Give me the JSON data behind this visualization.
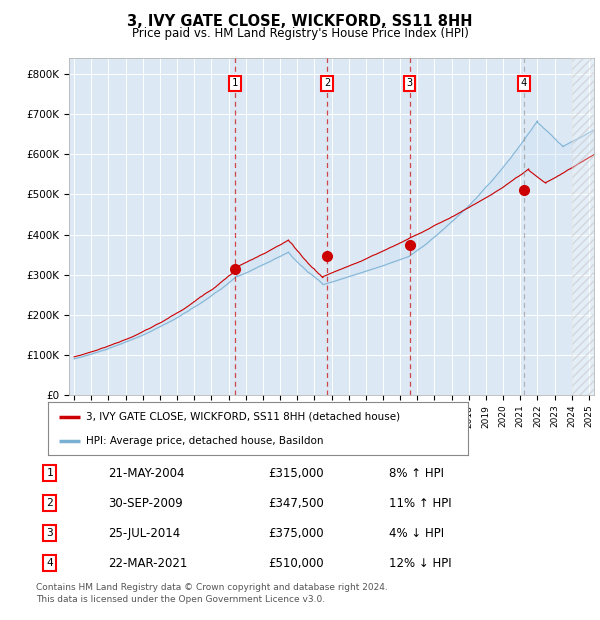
{
  "title": "3, IVY GATE CLOSE, WICKFORD, SS11 8HH",
  "subtitle": "Price paid vs. HM Land Registry's House Price Index (HPI)",
  "legend_label_red": "3, IVY GATE CLOSE, WICKFORD, SS11 8HH (detached house)",
  "legend_label_blue": "HPI: Average price, detached house, Basildon",
  "footer": "Contains HM Land Registry data © Crown copyright and database right 2024.\nThis data is licensed under the Open Government Licence v3.0.",
  "purchases": [
    {
      "num": 1,
      "date": "21-MAY-2004",
      "price": 315000,
      "year": 2004.38,
      "rel": "8% ↑ HPI"
    },
    {
      "num": 2,
      "date": "30-SEP-2009",
      "price": 347500,
      "year": 2009.75,
      "rel": "11% ↑ HPI"
    },
    {
      "num": 3,
      "date": "25-JUL-2014",
      "price": 375000,
      "year": 2014.56,
      "rel": "4% ↓ HPI"
    },
    {
      "num": 4,
      "date": "22-MAR-2021",
      "price": 510000,
      "year": 2021.22,
      "rel": "12% ↓ HPI"
    }
  ],
  "plot_bg_color": "#dce9f5",
  "grid_color": "#ffffff",
  "red_color": "#cc0000",
  "blue_color": "#7ab0d4",
  "fill_color": "#c5dcf0",
  "hatch_color": "#c0c0c0",
  "ylim": [
    0,
    840000
  ],
  "yticks": [
    0,
    100000,
    200000,
    300000,
    400000,
    500000,
    600000,
    700000,
    800000
  ],
  "ytick_labels": [
    "£0",
    "£100K",
    "£200K",
    "£300K",
    "£400K",
    "£500K",
    "£600K",
    "£700K",
    "£800K"
  ],
  "xlim": [
    1994.7,
    2025.3
  ],
  "hatch_start": 2024.0
}
